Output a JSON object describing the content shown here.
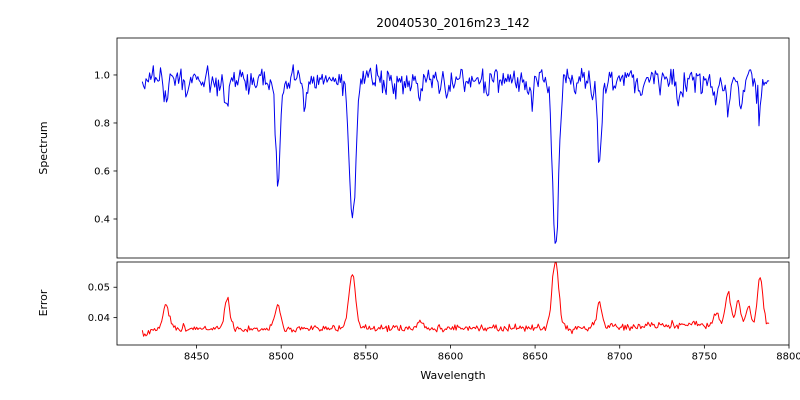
{
  "figure": {
    "background": "#ffffff"
  },
  "chart_data": {
    "type": "line",
    "title": "20040530_2016m23_142",
    "xlabel": "Wavelength",
    "x_range": [
      8403,
      8800
    ],
    "x_ticks": [
      8450,
      8500,
      8550,
      8600,
      8650,
      8700,
      8750,
      8800
    ],
    "grid": false,
    "legend": "none",
    "panels": [
      {
        "name": "spectrum",
        "ylabel": "Spectrum",
        "line_color": "#0000ee",
        "ylim": [
          0.2375,
          1.154
        ],
        "y_ticks": [
          0.4,
          0.6,
          0.8,
          1.0
        ],
        "y_tick_labels": [
          "0.4",
          "0.6",
          "0.8",
          "1.0"
        ]
      },
      {
        "name": "error",
        "ylabel": "Error",
        "line_color": "#ff0000",
        "ylim": [
          0.031,
          0.0583
        ],
        "y_ticks": [
          0.04,
          0.05
        ],
        "y_tick_labels": [
          "0.04",
          "0.05"
        ]
      }
    ],
    "spectrum_series": {
      "x_start": 8418,
      "x_end": 8788,
      "n_points": 520,
      "continuum_level": 0.99,
      "noise_sigma": 0.02,
      "downward_noise": 0.03,
      "seed": 42,
      "absorption_lines": [
        {
          "center": 8432,
          "depth": 0.08,
          "width": 1.2
        },
        {
          "center": 8444,
          "depth": 0.06,
          "width": 1.0
        },
        {
          "center": 8468,
          "depth": 0.13,
          "width": 1.2
        },
        {
          "center": 8498.0,
          "depth": 0.42,
          "width": 1.4
        },
        {
          "center": 8514,
          "depth": 0.11,
          "width": 1.1
        },
        {
          "center": 8542.1,
          "depth": 0.6,
          "width": 1.8
        },
        {
          "center": 8582,
          "depth": 0.07,
          "width": 1.0
        },
        {
          "center": 8598,
          "depth": 0.06,
          "width": 1.0
        },
        {
          "center": 8621,
          "depth": 0.07,
          "width": 1.0
        },
        {
          "center": 8648,
          "depth": 0.06,
          "width": 1.0
        },
        {
          "center": 8662.1,
          "depth": 0.7,
          "width": 1.8
        },
        {
          "center": 8674,
          "depth": 0.07,
          "width": 1.0
        },
        {
          "center": 8688.0,
          "depth": 0.37,
          "width": 1.2
        },
        {
          "center": 8713,
          "depth": 0.06,
          "width": 1.0
        },
        {
          "center": 8736,
          "depth": 0.07,
          "width": 1.0
        },
        {
          "center": 8757,
          "depth": 0.08,
          "width": 1.1
        },
        {
          "center": 8764,
          "depth": 0.12,
          "width": 1.2
        },
        {
          "center": 8772,
          "depth": 0.1,
          "width": 1.1
        },
        {
          "center": 8783,
          "depth": 0.11,
          "width": 1.2
        }
      ]
    },
    "error_series": {
      "x_start": 8418,
      "x_end": 8788,
      "n_points": 520,
      "baseline": 0.0363,
      "noise_sigma": 0.0005,
      "seed": 7,
      "bumps": [
        {
          "center": 8419,
          "height": -0.002,
          "width": 4
        },
        {
          "center": 8432,
          "height": 0.008,
          "width": 1.6
        },
        {
          "center": 8468,
          "height": 0.0095,
          "width": 1.6
        },
        {
          "center": 8498,
          "height": 0.008,
          "width": 1.6
        },
        {
          "center": 8542,
          "height": 0.017,
          "width": 2.0
        },
        {
          "center": 8582,
          "height": 0.003,
          "width": 1.4
        },
        {
          "center": 8662,
          "height": 0.0212,
          "width": 2.0
        },
        {
          "center": 8688,
          "height": 0.0085,
          "width": 1.5
        },
        {
          "center": 8757,
          "height": 0.004,
          "width": 1.4
        },
        {
          "center": 8764,
          "height": 0.011,
          "width": 1.5
        },
        {
          "center": 8770,
          "height": 0.008,
          "width": 1.4
        },
        {
          "center": 8776,
          "height": 0.006,
          "width": 1.4
        },
        {
          "center": 8783,
          "height": 0.016,
          "width": 1.6
        },
        {
          "center": 8780,
          "height": 0.0012,
          "width": 60
        }
      ]
    }
  }
}
